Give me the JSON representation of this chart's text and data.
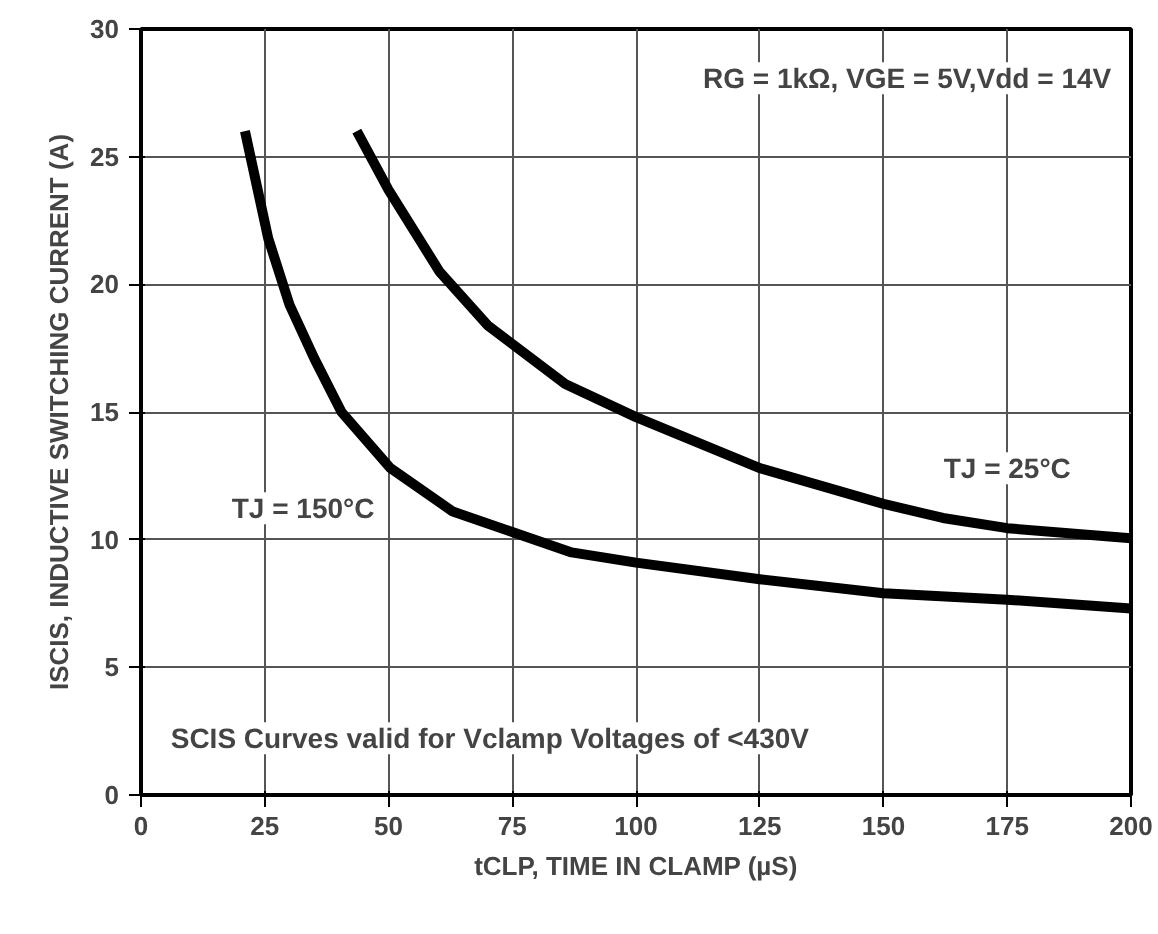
{
  "chart_data": {
    "type": "line",
    "xlabel": "tCLP, TIME IN CLAMP (µS)",
    "ylabel": "ISCIS, INDUCTIVE SWITCHING CURRENT (A)",
    "series": [
      {
        "name": "TJ = 150°C",
        "color": "#000000",
        "x": [
          21,
          25.7,
          30,
          35,
          40.5,
          50.4,
          63,
          75,
          87,
          100,
          125,
          150,
          175,
          200
        ],
        "values": [
          26,
          21.8,
          19.2,
          17.1,
          15,
          12.8,
          11.1,
          10.3,
          9.5,
          9.1,
          8.45,
          7.9,
          7.65,
          7.3
        ]
      },
      {
        "name": "TJ = 25°C",
        "color": "#000000",
        "x": [
          43.6,
          50,
          60.3,
          70,
          85.7,
          100,
          125,
          150,
          162,
          175,
          200
        ],
        "values": [
          26,
          23.7,
          20.5,
          18.4,
          16.1,
          14.8,
          12.8,
          11.4,
          10.85,
          10.45,
          10.05
        ]
      }
    ],
    "annotations": [
      "RG = 1kΩ, VGE = 5V,Vdd = 14V",
      "SCIS Curves valid for Vclamp Voltages of <430V"
    ],
    "xlim": [
      0,
      200
    ],
    "ylim": [
      0,
      30
    ],
    "xticks": [
      0,
      25,
      50,
      75,
      100,
      125,
      150,
      175,
      200
    ],
    "yticks": [
      0,
      5,
      10,
      15,
      20,
      25,
      30
    ],
    "grid": true,
    "marker": "none",
    "line_style": "solid"
  }
}
